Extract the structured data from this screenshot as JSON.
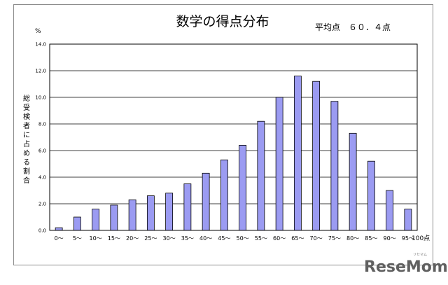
{
  "chart_data": {
    "type": "bar",
    "title": "数学の得点分布",
    "average_label": "平均点　６０．４点",
    "y_unit": "%",
    "x_unit": "100点",
    "ylabel_chars": [
      "総",
      "受",
      "検",
      "者",
      "に",
      "占",
      "め",
      "る",
      "割",
      "合"
    ],
    "ylim": [
      0,
      14
    ],
    "yticks": [
      "0.0",
      "2.0",
      "4.0",
      "6.0",
      "8.0",
      "10.0",
      "12.0",
      "14.0"
    ],
    "categories": [
      "0～",
      "5～",
      "10～",
      "15～",
      "20～",
      "25～",
      "30～",
      "35～",
      "40～",
      "45～",
      "50～",
      "55～",
      "60～",
      "65～",
      "70～",
      "75～",
      "80～",
      "85～",
      "90～",
      "95～"
    ],
    "values": [
      0.2,
      1.0,
      1.6,
      1.9,
      2.3,
      2.6,
      2.8,
      3.5,
      4.3,
      5.3,
      6.4,
      8.2,
      10.0,
      11.6,
      11.2,
      9.7,
      7.3,
      5.2,
      3.0,
      1.6
    ],
    "grid": true,
    "bar_color": "#9b9bf2"
  },
  "watermark": {
    "text": "ReseMom",
    "sub": "リセマム"
  }
}
